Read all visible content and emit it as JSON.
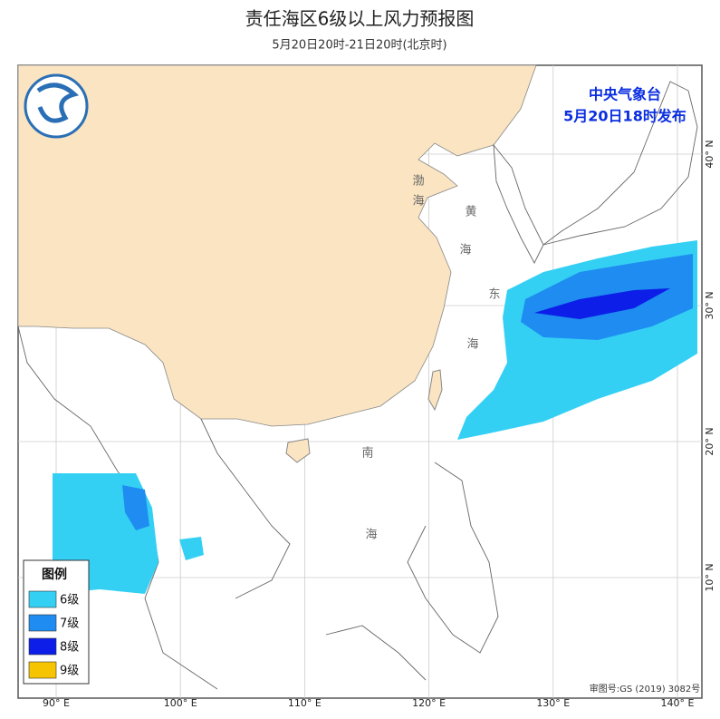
{
  "header": {
    "title": "责任海区6级以上风力预报图",
    "subtitle": "5月20日20时-21日20时(北京时)"
  },
  "publisher": {
    "name": "中央气象台",
    "issued": "5月20日18时发布"
  },
  "legend": {
    "title": "图例",
    "items": [
      {
        "label": "6级",
        "color": "#34d0f4"
      },
      {
        "label": "7级",
        "color": "#1e8cf0"
      },
      {
        "label": "8级",
        "color": "#0c1ee8"
      },
      {
        "label": "9级",
        "color": "#f6c400"
      }
    ]
  },
  "axes": {
    "longitudes": [
      "90° E",
      "100° E",
      "110° E",
      "120° E",
      "130° E",
      "140° E"
    ],
    "latitudes": [
      "10° N",
      "20° N",
      "30° N",
      "40° N"
    ]
  },
  "sea_labels": [
    "渤",
    "海",
    "黄",
    "海",
    "东",
    "海",
    "南",
    "海"
  ],
  "approval": "审图号:GS (2019) 3082号"
}
